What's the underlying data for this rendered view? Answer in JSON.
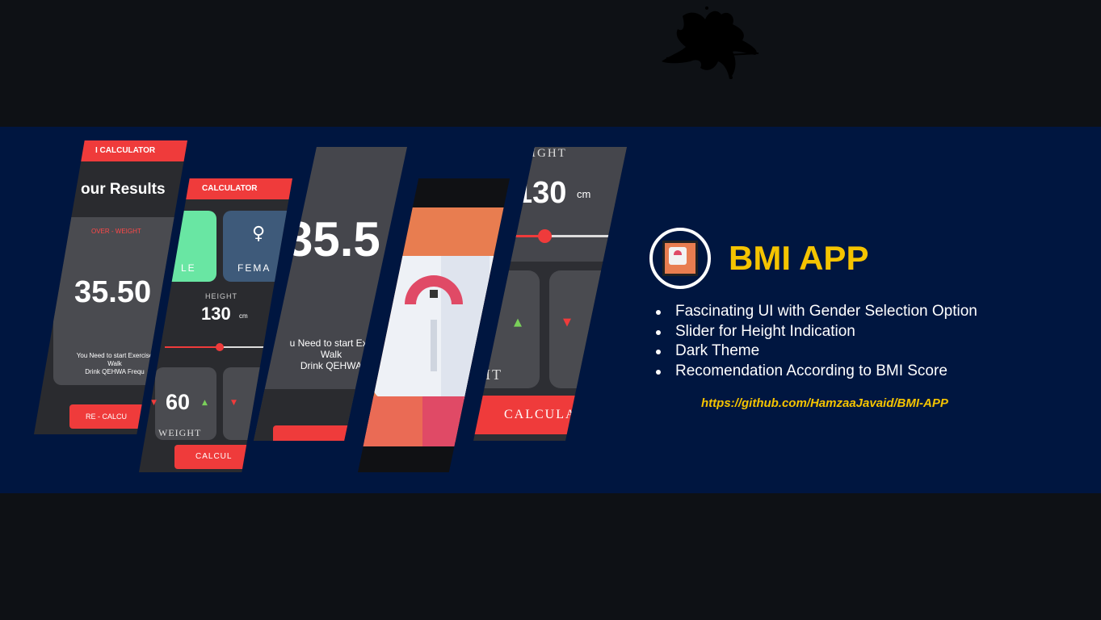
{
  "slides": {
    "results": {
      "appbar_title": "I CALCULATOR",
      "heading": "our Results",
      "status": "OVER - WEIGHT",
      "score": "35.50",
      "advice_line1": "You Need to start Exercise",
      "advice_line2": "Walk",
      "advice_line3": "Drink QEHWA Frequ",
      "button_label": "RE - CALCU"
    },
    "input": {
      "appbar_title": "CALCULATOR",
      "male_label": "LE",
      "female_label": "FEMA",
      "female_icon": "♀",
      "height_label": "HEIGHT",
      "height_value": "130",
      "height_unit": "cm",
      "weight_value": "60",
      "weight_label": "WEIGHT",
      "button_label": "CALCUL",
      "arrow_up": "▲",
      "arrow_down": "▼"
    },
    "score_large": {
      "score": "35.5",
      "advice_line1": "u Need to start Exe",
      "advice_line2": "Walk",
      "advice_line3": "Drink QEHWA"
    },
    "height_zoom": {
      "height_label": "IGHT",
      "height_value": "130",
      "height_unit": "cm",
      "weight_label_partial": "HT",
      "button_label": "CALCULA",
      "arrow_up": "▲",
      "arrow_down": "▼"
    }
  },
  "info": {
    "title": "BMI APP",
    "features": [
      "Fascinating UI with Gender Selection Option",
      "Slider for Height Indication",
      "Dark Theme",
      "Recomendation According to BMI Score"
    ],
    "link": "https://github.com/HamzaaJavaid/BMI-APP"
  },
  "colors": {
    "banner_bg": "#001640",
    "accent_red": "#ef3b3b",
    "title_yellow": "#f5c400",
    "male_green": "#69e6a3",
    "female_blue": "#3e5a7a",
    "dark_bg": "#0e1115"
  },
  "icons": {
    "logo": "bmi-scale-icon",
    "signature": "signature-mark"
  }
}
